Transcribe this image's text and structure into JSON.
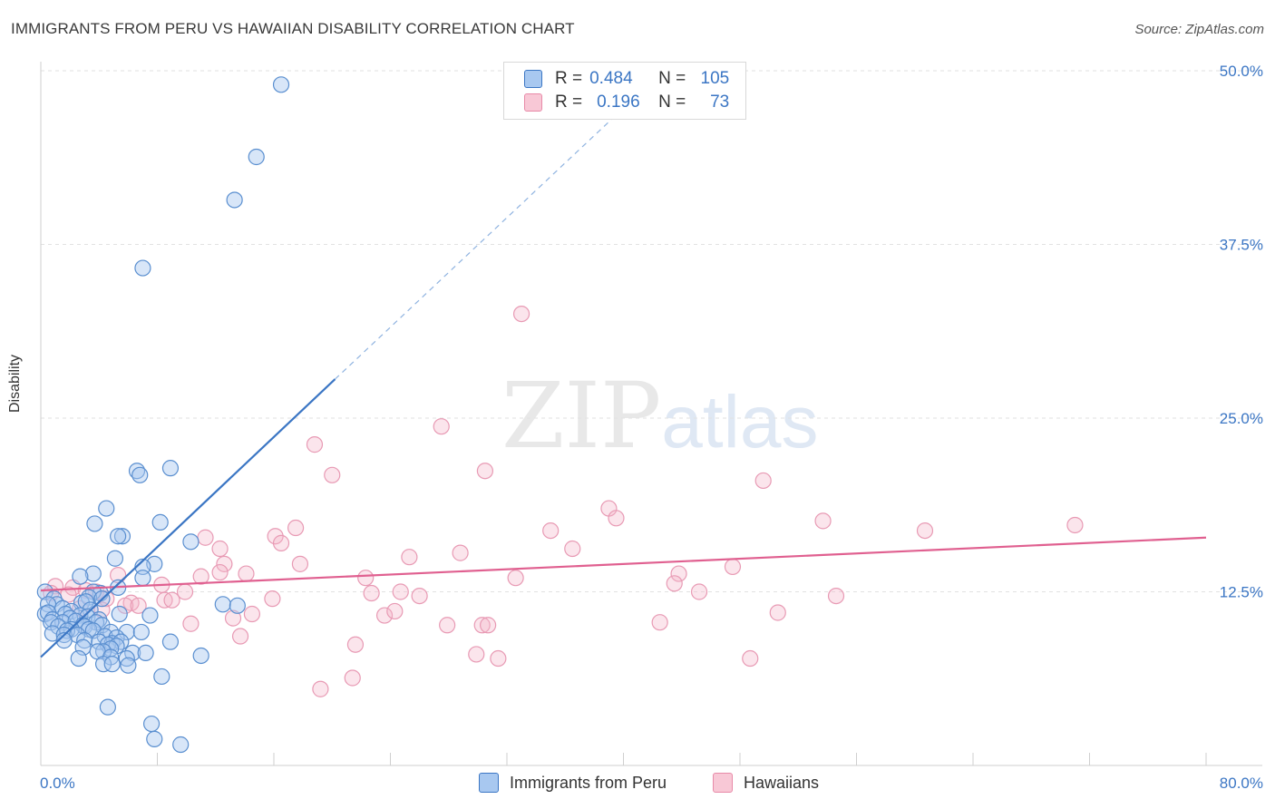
{
  "title": "IMMIGRANTS FROM PERU VS HAWAIIAN DISABILITY CORRELATION CHART",
  "source": "Source: ZipAtlas.com",
  "watermark": {
    "part1": "ZIP",
    "part2": "atlas"
  },
  "colors": {
    "blue": "#3b76c4",
    "blue_fill": "#a8c8f0",
    "pink": "#e06090",
    "pink_fill": "#f4b4c8",
    "grid": "#e2e2e2"
  },
  "legend": {
    "blue": {
      "r_label": "R =",
      "r_value": "0.484",
      "n_label": "N =",
      "n_value": "105"
    },
    "pink": {
      "r_label": "R =",
      "r_value": "0.196",
      "n_label": "N =",
      "n_value": "73"
    }
  },
  "chart_data": {
    "type": "scatter",
    "title": "IMMIGRANTS FROM PERU VS HAWAIIAN DISABILITY CORRELATION CHART",
    "xlabel": "",
    "ylabel": "Disability",
    "xlim": [
      0,
      80
    ],
    "ylim": [
      0,
      51
    ],
    "x_tick_labels": [
      "0.0%",
      "80.0%"
    ],
    "y_ticks": [
      12.5,
      25.0,
      37.5,
      50.0
    ],
    "y_tick_labels": [
      "12.5%",
      "25.0%",
      "37.5%",
      "50.0%"
    ],
    "grid": true,
    "legend_position": "top-center",
    "series": [
      {
        "name": "Immigrants from Peru",
        "color": "#3b76c4",
        "trend": {
          "x": [
            0,
            20.2
          ],
          "y": [
            7.8,
            27.8
          ],
          "extended_to": [
            40.5,
            47.8
          ]
        },
        "points": [
          [
            16.5,
            49.0
          ],
          [
            14.8,
            43.8
          ],
          [
            13.3,
            40.7
          ],
          [
            7.0,
            35.8
          ],
          [
            6.6,
            21.2
          ],
          [
            6.8,
            20.9
          ],
          [
            8.9,
            21.4
          ],
          [
            4.5,
            18.5
          ],
          [
            3.7,
            17.4
          ],
          [
            8.2,
            17.5
          ],
          [
            5.6,
            16.5
          ],
          [
            5.3,
            16.5
          ],
          [
            10.3,
            16.1
          ],
          [
            5.1,
            14.9
          ],
          [
            7.8,
            14.5
          ],
          [
            7.0,
            14.3
          ],
          [
            3.6,
            13.8
          ],
          [
            2.7,
            13.6
          ],
          [
            7.0,
            13.5
          ],
          [
            5.3,
            12.8
          ],
          [
            4.1,
            12.4
          ],
          [
            3.6,
            12.5
          ],
          [
            0.3,
            12.5
          ],
          [
            0.9,
            12.0
          ],
          [
            3.3,
            12.1
          ],
          [
            4.2,
            12.0
          ],
          [
            2.8,
            11.7
          ],
          [
            3.1,
            11.8
          ],
          [
            1.1,
            11.6
          ],
          [
            0.5,
            11.6
          ],
          [
            12.5,
            11.6
          ],
          [
            13.5,
            11.5
          ],
          [
            1.5,
            11.3
          ],
          [
            3.4,
            11.2
          ],
          [
            2.1,
            11.1
          ],
          [
            0.3,
            10.9
          ],
          [
            1.7,
            10.9
          ],
          [
            0.5,
            11.0
          ],
          [
            5.4,
            10.9
          ],
          [
            2.7,
            10.8
          ],
          [
            2.0,
            10.6
          ],
          [
            3.2,
            10.7
          ],
          [
            0.8,
            10.5
          ],
          [
            7.5,
            10.8
          ],
          [
            4.0,
            10.5
          ],
          [
            1.5,
            10.3
          ],
          [
            2.4,
            10.4
          ],
          [
            3.8,
            10.3
          ],
          [
            0.7,
            10.3
          ],
          [
            2.9,
            10.1
          ],
          [
            1.2,
            10.0
          ],
          [
            3.0,
            10.0
          ],
          [
            4.2,
            10.1
          ],
          [
            2.1,
            9.8
          ],
          [
            3.3,
            9.8
          ],
          [
            1.8,
            9.7
          ],
          [
            3.6,
            9.7
          ],
          [
            4.8,
            9.6
          ],
          [
            5.9,
            9.6
          ],
          [
            6.9,
            9.6
          ],
          [
            0.8,
            9.5
          ],
          [
            1.6,
            9.4
          ],
          [
            2.5,
            9.4
          ],
          [
            4.4,
            9.3
          ],
          [
            5.2,
            9.2
          ],
          [
            1.6,
            9.0
          ],
          [
            3.0,
            9.0
          ],
          [
            4.0,
            8.9
          ],
          [
            4.9,
            8.8
          ],
          [
            5.5,
            8.9
          ],
          [
            8.9,
            8.9
          ],
          [
            4.6,
            8.7
          ],
          [
            5.2,
            8.6
          ],
          [
            2.9,
            8.5
          ],
          [
            4.8,
            8.4
          ],
          [
            4.3,
            8.2
          ],
          [
            3.9,
            8.2
          ],
          [
            6.3,
            8.1
          ],
          [
            7.2,
            8.1
          ],
          [
            11.0,
            7.9
          ],
          [
            4.8,
            7.8
          ],
          [
            2.6,
            7.7
          ],
          [
            5.9,
            7.7
          ],
          [
            4.3,
            7.3
          ],
          [
            4.9,
            7.3
          ],
          [
            6.0,
            7.2
          ],
          [
            8.3,
            6.4
          ],
          [
            4.6,
            4.2
          ],
          [
            7.6,
            3.0
          ],
          [
            7.8,
            1.9
          ],
          [
            9.6,
            1.5
          ]
        ]
      },
      {
        "name": "Hawaiians",
        "color": "#e06090",
        "trend": {
          "x": [
            0,
            80
          ],
          "y": [
            12.6,
            16.4
          ]
        },
        "points": [
          [
            33.0,
            32.5
          ],
          [
            27.5,
            24.4
          ],
          [
            18.8,
            23.1
          ],
          [
            30.5,
            21.2
          ],
          [
            20.0,
            20.9
          ],
          [
            49.6,
            20.5
          ],
          [
            39.0,
            18.5
          ],
          [
            39.5,
            17.8
          ],
          [
            53.7,
            17.6
          ],
          [
            71.0,
            17.3
          ],
          [
            17.5,
            17.1
          ],
          [
            35.0,
            16.9
          ],
          [
            60.7,
            16.9
          ],
          [
            16.1,
            16.5
          ],
          [
            11.3,
            16.4
          ],
          [
            16.5,
            16.0
          ],
          [
            12.3,
            15.6
          ],
          [
            36.5,
            15.6
          ],
          [
            28.8,
            15.3
          ],
          [
            25.3,
            15.0
          ],
          [
            12.6,
            14.5
          ],
          [
            17.8,
            14.5
          ],
          [
            47.5,
            14.3
          ],
          [
            12.3,
            13.9
          ],
          [
            14.1,
            13.8
          ],
          [
            43.8,
            13.8
          ],
          [
            5.3,
            13.7
          ],
          [
            11.0,
            13.6
          ],
          [
            32.6,
            13.5
          ],
          [
            22.3,
            13.5
          ],
          [
            43.5,
            13.1
          ],
          [
            8.3,
            13.0
          ],
          [
            1.0,
            12.9
          ],
          [
            2.2,
            12.8
          ],
          [
            3.1,
            12.6
          ],
          [
            3.8,
            12.5
          ],
          [
            9.9,
            12.5
          ],
          [
            0.7,
            12.4
          ],
          [
            1.9,
            12.3
          ],
          [
            22.7,
            12.4
          ],
          [
            24.7,
            12.5
          ],
          [
            45.2,
            12.5
          ],
          [
            54.6,
            12.2
          ],
          [
            26.0,
            12.2
          ],
          [
            4.5,
            12.0
          ],
          [
            15.9,
            12.0
          ],
          [
            8.5,
            11.9
          ],
          [
            9.0,
            11.9
          ],
          [
            6.2,
            11.7
          ],
          [
            5.8,
            11.5
          ],
          [
            6.7,
            11.5
          ],
          [
            2.7,
            11.3
          ],
          [
            4.2,
            11.2
          ],
          [
            14.5,
            10.9
          ],
          [
            23.6,
            10.8
          ],
          [
            24.3,
            11.1
          ],
          [
            50.6,
            11.0
          ],
          [
            13.2,
            10.6
          ],
          [
            10.3,
            10.2
          ],
          [
            27.9,
            10.1
          ],
          [
            30.3,
            10.1
          ],
          [
            30.7,
            10.1
          ],
          [
            42.5,
            10.3
          ],
          [
            13.7,
            9.3
          ],
          [
            21.6,
            8.7
          ],
          [
            29.9,
            8.0
          ],
          [
            31.4,
            7.7
          ],
          [
            48.7,
            7.7
          ],
          [
            21.4,
            6.3
          ],
          [
            19.2,
            5.5
          ]
        ]
      }
    ]
  },
  "bottom_legend": {
    "blue_label": "Immigrants from Peru",
    "pink_label": "Hawaiians"
  }
}
